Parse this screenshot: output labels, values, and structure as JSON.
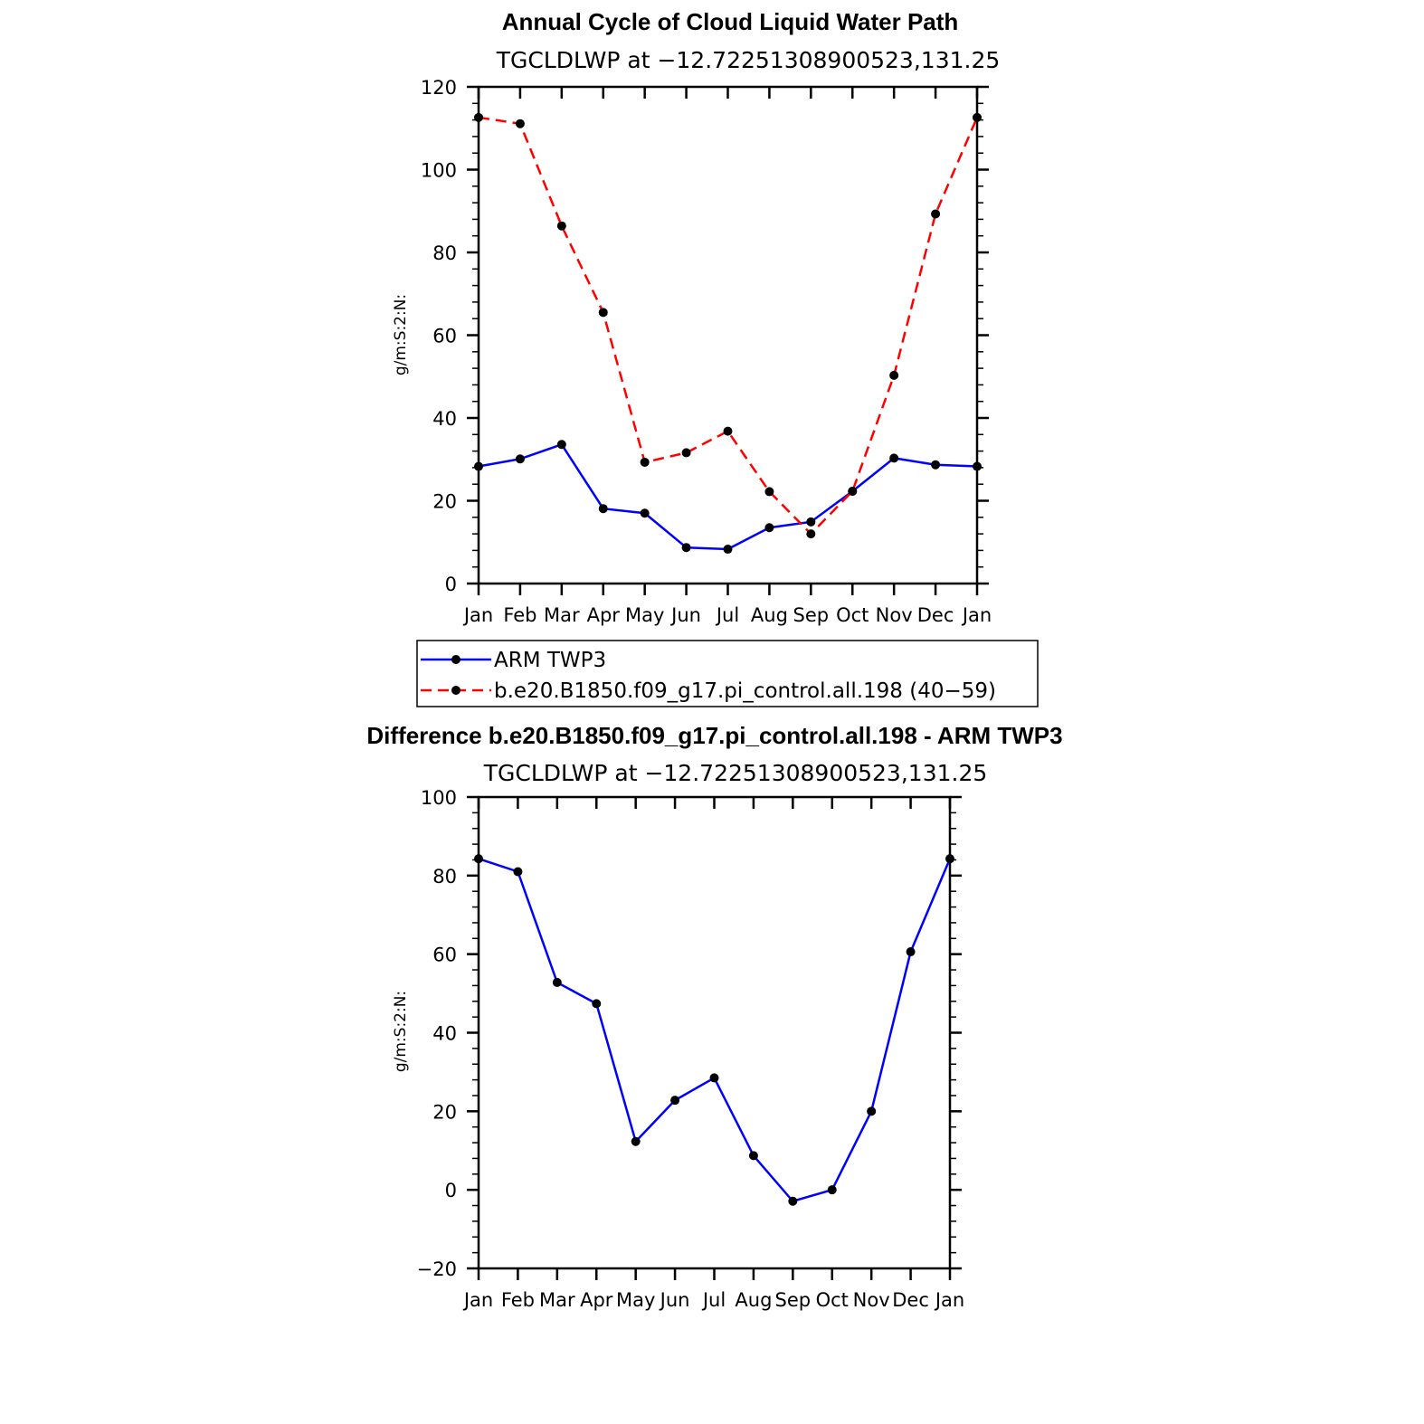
{
  "chart_data": [
    {
      "type": "line",
      "title": "Annual Cycle of Cloud Liquid Water Path",
      "subtitle": "TGCLDLWP at −12.7225130890052​3,131.25",
      "ylabel": "g/m:S:2:N:",
      "xlabel": "",
      "categories": [
        "Jan",
        "Feb",
        "Mar",
        "Apr",
        "May",
        "Jun",
        "Jul",
        "Aug",
        "Sep",
        "Oct",
        "Nov",
        "Dec",
        "Jan"
      ],
      "ylim": [
        0,
        120
      ],
      "yticks": [
        0,
        20,
        40,
        60,
        80,
        100,
        120
      ],
      "grid": false,
      "legend_position": "below",
      "series": [
        {
          "name": "ARM TWP3",
          "color": "#0000ff",
          "dash": "solid",
          "values": [
            28.3,
            30.1,
            33.6,
            18.1,
            17.0,
            8.7,
            8.3,
            13.5,
            14.9,
            22.3,
            30.3,
            28.7,
            28.3
          ]
        },
        {
          "name": "b.e20.B1850.f09_g17.pi_control.all.198 (40−59)",
          "color": "#ff0000",
          "dash": "dashed",
          "values": [
            112.6,
            111.1,
            86.4,
            65.5,
            29.3,
            31.6,
            36.8,
            22.2,
            12.0,
            22.3,
            50.3,
            89.3,
            112.6
          ]
        }
      ]
    },
    {
      "type": "line",
      "title": "Difference b.e20.B1850.f09_g17.pi_control.all.198 - ARM TWP3",
      "subtitle": "TGCLDLWP at −12.72251308900523,131.25",
      "ylabel": "g/m:S:2:N:",
      "xlabel": "",
      "categories": [
        "Jan",
        "Feb",
        "Mar",
        "Apr",
        "May",
        "Jun",
        "Jul",
        "Aug",
        "Sep",
        "Oct",
        "Nov",
        "Dec",
        "Jan"
      ],
      "ylim": [
        -20,
        100
      ],
      "yticks": [
        -20,
        0,
        20,
        40,
        60,
        80,
        100
      ],
      "grid": false,
      "series": [
        {
          "color": "#0000ff",
          "dash": "solid",
          "values": [
            84.3,
            81.0,
            52.8,
            47.4,
            12.3,
            22.8,
            28.5,
            8.7,
            -2.9,
            0.0,
            20.0,
            60.6,
            84.3
          ]
        }
      ]
    }
  ]
}
